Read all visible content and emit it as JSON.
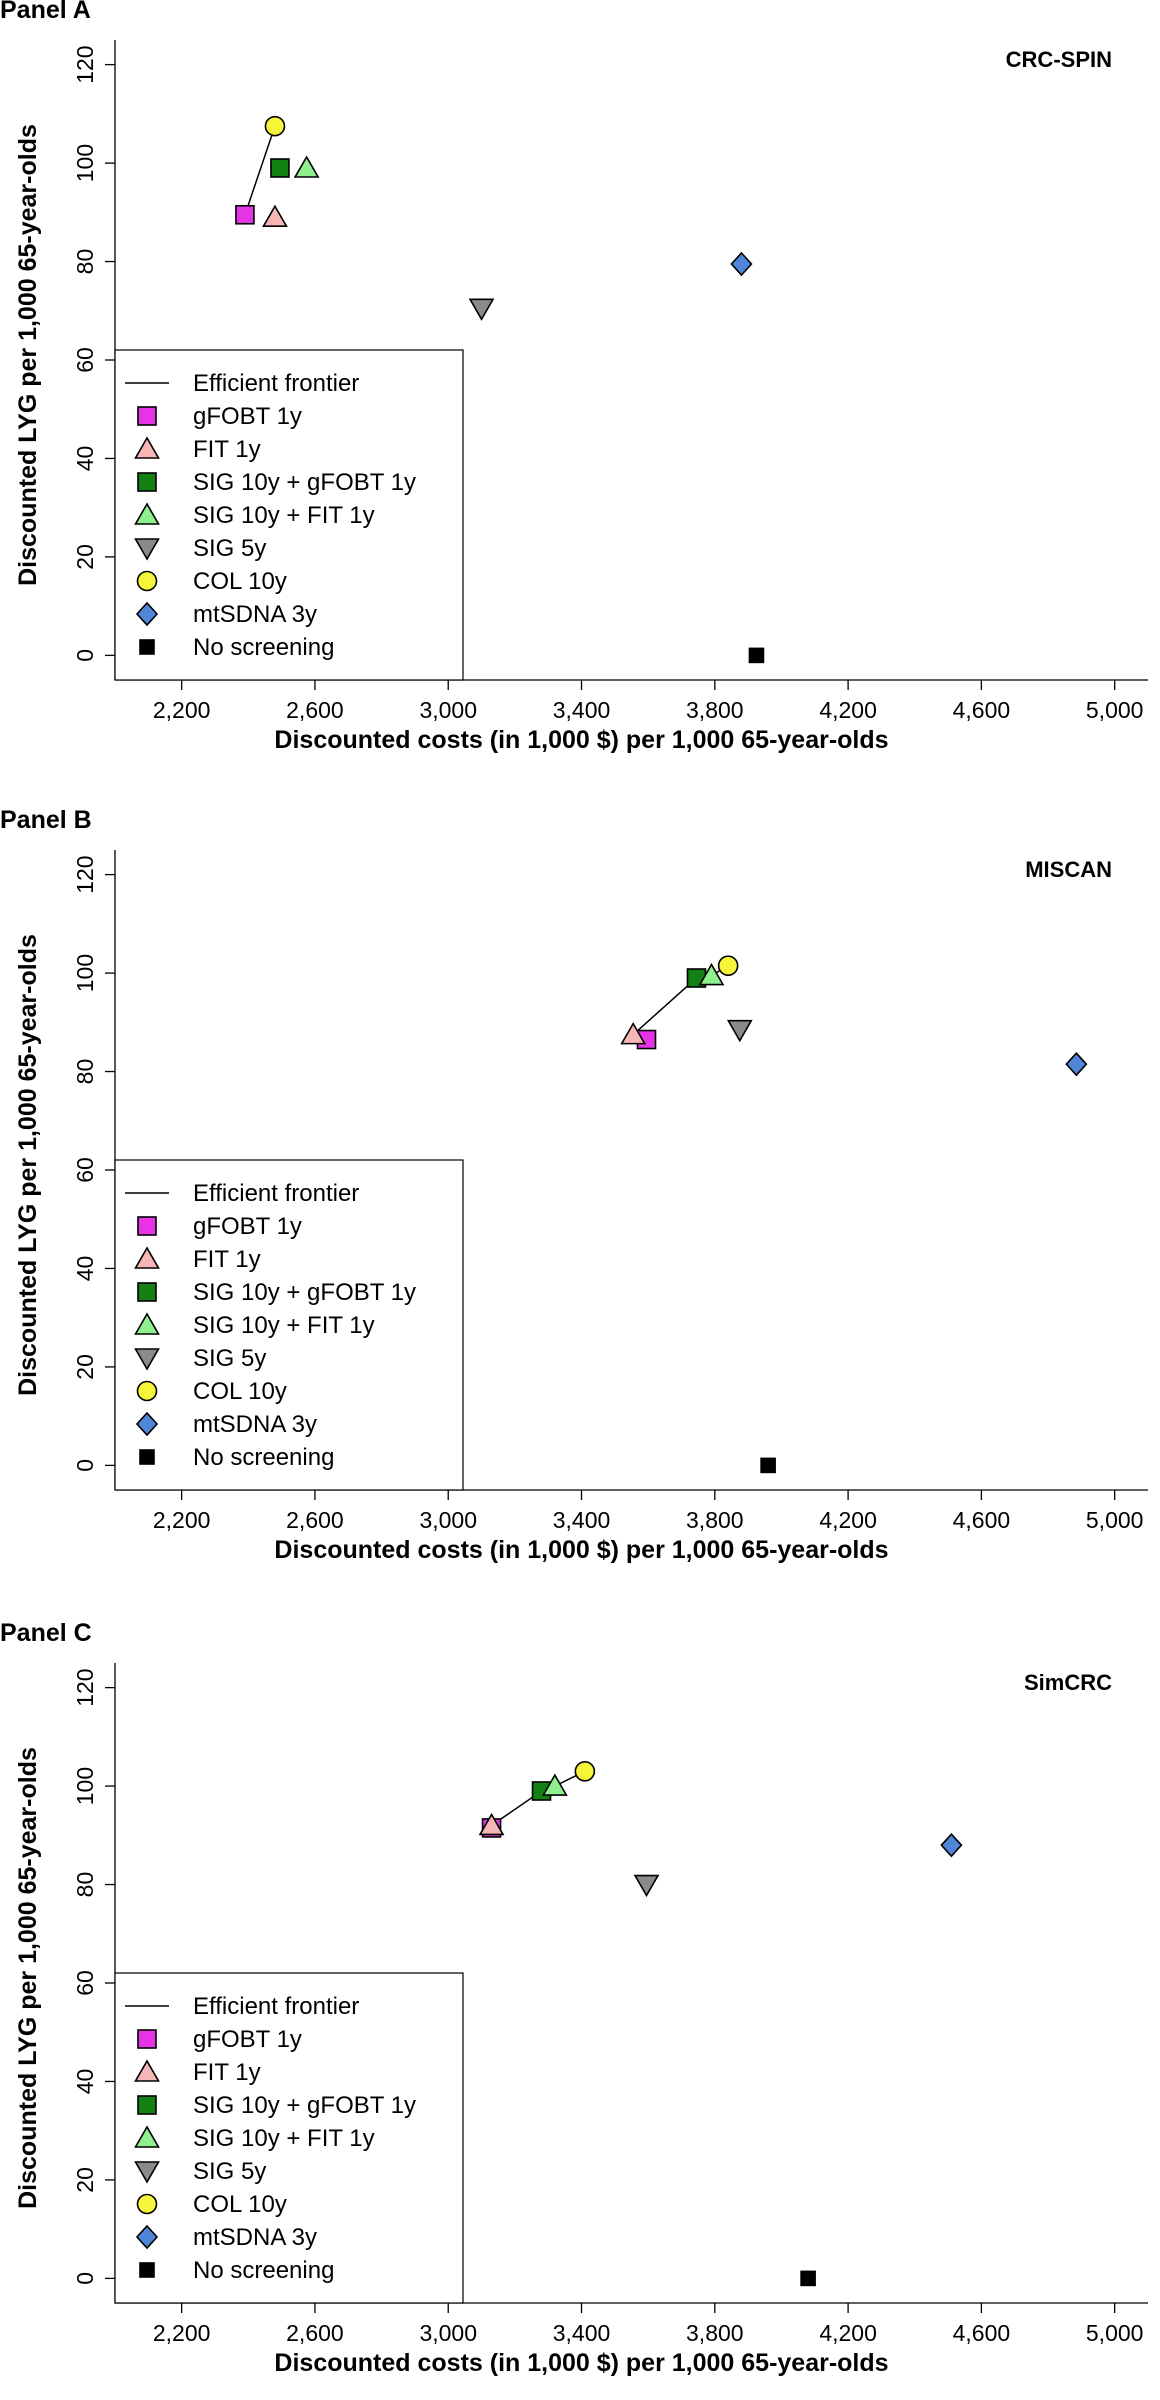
{
  "chart_data": [
    {
      "type": "scatter",
      "panel": "Panel A",
      "model": "CRC-SPIN",
      "xlabel": "Discounted costs (in 1,000 $) per 1,000 65-year-olds",
      "ylabel": "Discounted LYG per 1,000 65-year-olds",
      "xlim": [
        2000,
        5100
      ],
      "ylim": [
        -5,
        125
      ],
      "xticks": [
        2200,
        2600,
        3000,
        3400,
        3800,
        4200,
        4600,
        5000
      ],
      "xtick_labels": [
        "2,200",
        "2,600",
        "3,000",
        "3,400",
        "3,800",
        "4,200",
        "4,600",
        "5,000"
      ],
      "yticks": [
        0,
        20,
        40,
        60,
        80,
        100,
        120
      ],
      "ytick_labels": [
        "0",
        "20",
        "40",
        "60",
        "80",
        "100",
        "120"
      ],
      "points": [
        {
          "strategy": "gFOBT 1y",
          "x": 2390,
          "y": 89.5
        },
        {
          "strategy": "FIT 1y",
          "x": 2480,
          "y": 89
        },
        {
          "strategy": "SIG 10y + gFOBT 1y",
          "x": 2495,
          "y": 99
        },
        {
          "strategy": "SIG 10y + FIT 1y",
          "x": 2575,
          "y": 99
        },
        {
          "strategy": "SIG 5y",
          "x": 3100,
          "y": 70.5
        },
        {
          "strategy": "COL 10y",
          "x": 2480,
          "y": 107.5
        },
        {
          "strategy": "mtSDNA 3y",
          "x": 3880,
          "y": 79.5
        },
        {
          "strategy": "No screening",
          "x": 3925,
          "y": 0
        }
      ],
      "frontier": [
        [
          2390,
          89.5
        ],
        [
          2480,
          107.5
        ]
      ]
    },
    {
      "type": "scatter",
      "panel": "Panel B",
      "model": "MISCAN",
      "xlabel": "Discounted costs (in 1,000 $) per 1,000 65-year-olds",
      "ylabel": "Discounted LYG per 1,000 65-year-olds",
      "xlim": [
        2000,
        5100
      ],
      "ylim": [
        -5,
        125
      ],
      "xticks": [
        2200,
        2600,
        3000,
        3400,
        3800,
        4200,
        4600,
        5000
      ],
      "xtick_labels": [
        "2,200",
        "2,600",
        "3,000",
        "3,400",
        "3,800",
        "4,200",
        "4,600",
        "5,000"
      ],
      "yticks": [
        0,
        20,
        40,
        60,
        80,
        100,
        120
      ],
      "ytick_labels": [
        "0",
        "20",
        "40",
        "60",
        "80",
        "100",
        "120"
      ],
      "points": [
        {
          "strategy": "gFOBT 1y",
          "x": 3595,
          "y": 86.5
        },
        {
          "strategy": "FIT 1y",
          "x": 3555,
          "y": 87.5
        },
        {
          "strategy": "SIG 10y + gFOBT 1y",
          "x": 3745,
          "y": 99
        },
        {
          "strategy": "SIG 10y + FIT 1y",
          "x": 3790,
          "y": 99.5
        },
        {
          "strategy": "SIG 5y",
          "x": 3875,
          "y": 88.5
        },
        {
          "strategy": "COL 10y",
          "x": 3840,
          "y": 101.5
        },
        {
          "strategy": "mtSDNA 3y",
          "x": 4885,
          "y": 81.5
        },
        {
          "strategy": "No screening",
          "x": 3960,
          "y": 0
        }
      ],
      "frontier": [
        [
          3555,
          87.5
        ],
        [
          3745,
          99
        ],
        [
          3790,
          99.5
        ],
        [
          3840,
          101.5
        ]
      ]
    },
    {
      "type": "scatter",
      "panel": "Panel C",
      "model": "SimCRC",
      "xlabel": "Discounted costs (in 1,000 $) per 1,000 65-year-olds",
      "ylabel": "Discounted LYG per 1,000 65-year-olds",
      "xlim": [
        2000,
        5100
      ],
      "ylim": [
        -5,
        125
      ],
      "xticks": [
        2200,
        2600,
        3000,
        3400,
        3800,
        4200,
        4600,
        5000
      ],
      "xtick_labels": [
        "2,200",
        "2,600",
        "3,000",
        "3,400",
        "3,800",
        "4,200",
        "4,600",
        "5,000"
      ],
      "yticks": [
        0,
        20,
        40,
        60,
        80,
        100,
        120
      ],
      "ytick_labels": [
        "0",
        "20",
        "40",
        "60",
        "80",
        "100",
        "120"
      ],
      "points": [
        {
          "strategy": "gFOBT 1y",
          "x": 3130,
          "y": 91.5
        },
        {
          "strategy": "FIT 1y",
          "x": 3130,
          "y": 92
        },
        {
          "strategy": "SIG 10y + gFOBT 1y",
          "x": 3280,
          "y": 99
        },
        {
          "strategy": "SIG 10y + FIT 1y",
          "x": 3320,
          "y": 100
        },
        {
          "strategy": "SIG 5y",
          "x": 3595,
          "y": 80
        },
        {
          "strategy": "COL 10y",
          "x": 3410,
          "y": 103
        },
        {
          "strategy": "mtSDNA 3y",
          "x": 4510,
          "y": 88
        },
        {
          "strategy": "No screening",
          "x": 4080,
          "y": 0
        }
      ],
      "frontier": [
        [
          3130,
          92
        ],
        [
          3280,
          99
        ],
        [
          3320,
          100
        ],
        [
          3410,
          103
        ]
      ]
    }
  ],
  "legend": {
    "placement": "bottom-left",
    "frontier_label": "Efficient frontier",
    "items": [
      {
        "label": "gFOBT 1y",
        "marker": "square",
        "color": "#e633e6"
      },
      {
        "label": "FIT 1y",
        "marker": "triangle-up",
        "color": "#f7b6b6"
      },
      {
        "label": "SIG 10y + gFOBT 1y",
        "marker": "square",
        "color": "#128012"
      },
      {
        "label": "SIG 10y + FIT 1y",
        "marker": "triangle-up",
        "color": "#8ef08e"
      },
      {
        "label": "SIG 5y",
        "marker": "triangle-down",
        "color": "#8a8a8a"
      },
      {
        "label": "COL 10y",
        "marker": "circle",
        "color": "#f5f53a"
      },
      {
        "label": "mtSDNA 3y",
        "marker": "diamond",
        "color": "#4f86d8"
      },
      {
        "label": "No screening",
        "marker": "square-small",
        "color": "#000000"
      }
    ]
  }
}
